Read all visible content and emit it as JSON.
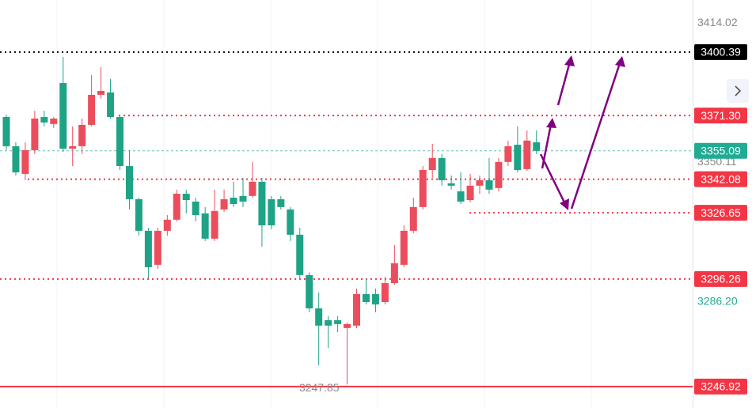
{
  "chart_data": {
    "type": "candlestick",
    "up_color": "#eb4d5c",
    "down_color": "#1fa386",
    "ylim": [
      3237.1,
      3424.3
    ],
    "open": [
      3370.6,
      3357.2,
      3344.5,
      3355.4,
      3370.6,
      3367.4,
      3386.2,
      3356.1,
      3357.2,
      3367.0,
      3380.8,
      3381.9,
      3370.6,
      3348.1,
      3332.9,
      3318.4,
      3302.8,
      3318.4,
      3323.5,
      3335.4,
      3331.8,
      3326.4,
      3314.8,
      3328.2,
      3333.6,
      3334.4,
      3334.4,
      3340.9,
      3332.9,
      3332.9,
      3328.2,
      3316.6,
      3298.1,
      3282.8,
      3277.4,
      3277.4,
      3273.8,
      3274.9,
      3289.4,
      3289.4,
      3285.7,
      3294.4,
      3302.8,
      3318.4,
      3329.3,
      3346.3,
      3351.8,
      3340.2,
      3336.5,
      3332.5,
      3339.1,
      3341.6,
      3338.0,
      3350.0,
      3357.9,
      3346.7,
      3359.0
    ],
    "high": [
      3371.7,
      3359.0,
      3359.0,
      3373.5,
      3373.5,
      3370.6,
      3398.2,
      3366.3,
      3369.9,
      3389.9,
      3393.5,
      3388.1,
      3371.7,
      3355.4,
      3333.6,
      3319.8,
      3319.8,
      3325.6,
      3337.3,
      3337.3,
      3333.6,
      3329.3,
      3337.3,
      3337.3,
      3340.9,
      3342.7,
      3350.0,
      3342.7,
      3334.4,
      3334.4,
      3329.3,
      3319.8,
      3299.2,
      3290.1,
      3279.2,
      3279.2,
      3276.3,
      3291.9,
      3296.6,
      3291.9,
      3297.3,
      3311.9,
      3320.9,
      3333.6,
      3348.1,
      3358.3,
      3353.6,
      3343.8,
      3345.2,
      3344.5,
      3343.8,
      3351.8,
      3351.8,
      3359.8,
      3366.3,
      3364.5,
      3364.5
    ],
    "low": [
      3355.4,
      3343.8,
      3341.6,
      3353.6,
      3366.3,
      3365.6,
      3354.7,
      3348.1,
      3353.6,
      3366.3,
      3379.0,
      3369.9,
      3346.3,
      3328.2,
      3316.2,
      3296.6,
      3301.0,
      3316.2,
      3322.7,
      3326.4,
      3322.7,
      3313.7,
      3313.7,
      3327.1,
      3329.3,
      3329.3,
      3333.6,
      3311.1,
      3319.1,
      3328.2,
      3313.7,
      3296.6,
      3281.0,
      3256.7,
      3264.7,
      3271.9,
      3247.85,
      3273.8,
      3284.6,
      3281.0,
      3284.6,
      3293.7,
      3301.7,
      3317.3,
      3328.2,
      3342.7,
      3339.1,
      3337.3,
      3330.7,
      3331.5,
      3335.4,
      3335.4,
      3336.5,
      3348.1,
      3345.2,
      3346.0,
      3353.6
    ],
    "close": [
      3357.2,
      3345.2,
      3355.4,
      3369.9,
      3368.1,
      3369.9,
      3356.1,
      3357.2,
      3367.0,
      3380.8,
      3382.6,
      3370.6,
      3348.1,
      3332.9,
      3318.4,
      3301.7,
      3318.4,
      3323.5,
      3335.4,
      3332.5,
      3325.6,
      3314.8,
      3327.5,
      3332.9,
      3330.7,
      3331.8,
      3340.9,
      3320.9,
      3320.9,
      3329.3,
      3316.6,
      3298.1,
      3282.8,
      3274.9,
      3274.9,
      3275.6,
      3275.6,
      3289.4,
      3285.7,
      3284.6,
      3294.4,
      3303.5,
      3318.4,
      3329.3,
      3346.3,
      3351.8,
      3341.6,
      3339.1,
      3331.8,
      3339.1,
      3341.6,
      3337.3,
      3350.0,
      3357.2,
      3346.3,
      3359.8,
      3355.09
    ],
    "levels": [
      {
        "value": 3414.02,
        "color": "#888888"
      },
      {
        "value": 3400.39,
        "color": "#000000",
        "boxed": true,
        "line": "dotted"
      },
      {
        "value": 3371.3,
        "label": "3371.30",
        "color": "#f23645",
        "boxed": true,
        "line": "dotted"
      },
      {
        "value": 3355.09,
        "color": "#22ab94",
        "boxed": true,
        "line": "dashed"
      },
      {
        "value": 3350.11,
        "color": "#888888"
      },
      {
        "value": 3342.08,
        "color": "#f23645",
        "boxed": true,
        "line": "dotted"
      },
      {
        "value": 3326.65,
        "color": "#f23645",
        "boxed": true,
        "line": "dotted"
      },
      {
        "value": 3296.26,
        "color": "#f23645",
        "boxed": true,
        "line": "dotted"
      },
      {
        "value": 3286.2,
        "label": "3286.20",
        "color": "#22ab94"
      },
      {
        "value": 3246.92,
        "color": "#f23645",
        "boxed": true,
        "line": "solid"
      }
    ],
    "low_label": 3247.85
  }
}
